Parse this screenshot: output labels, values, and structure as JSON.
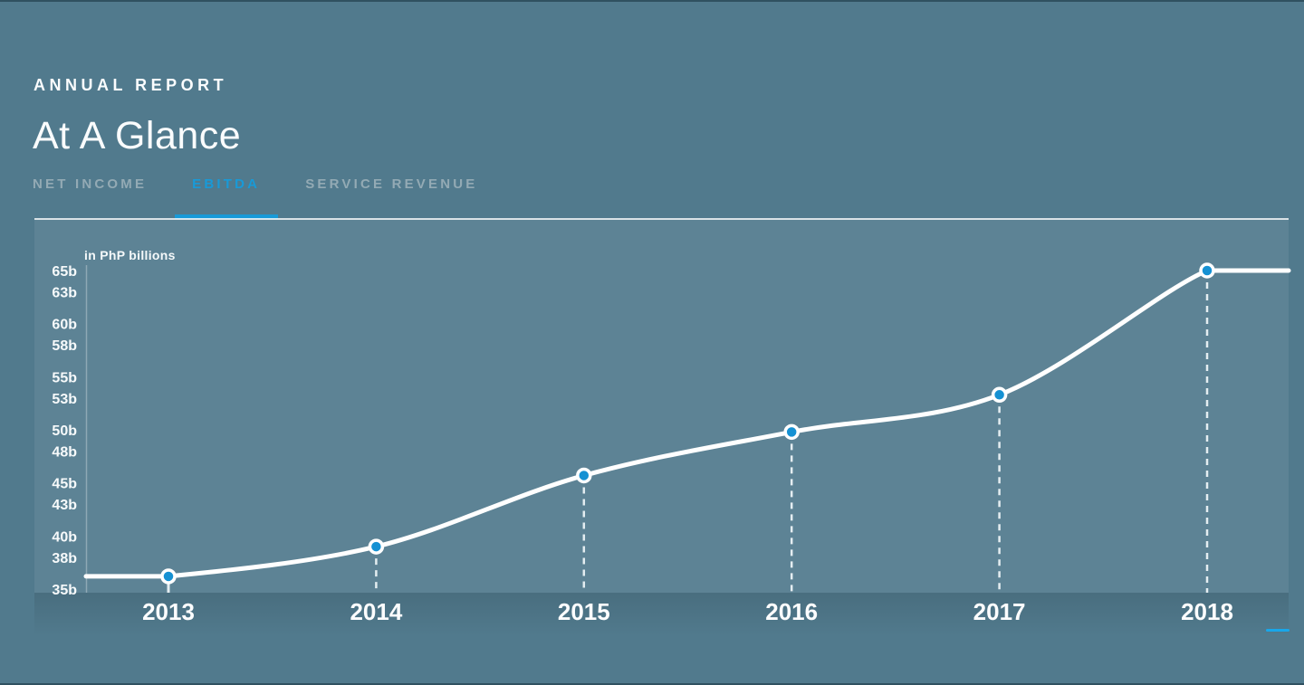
{
  "page": {
    "eyebrow": "ANNUAL REPORT",
    "title": "At A Glance"
  },
  "tabs": [
    {
      "label": "NET INCOME",
      "active": false
    },
    {
      "label": "EBITDA",
      "active": true
    },
    {
      "label": "SERVICE REVENUE",
      "active": false
    }
  ],
  "colors": {
    "background": "#517a8d",
    "accent_blue": "#189ad8",
    "dot_blue": "#1591d3",
    "line_white": "#ffffff",
    "indicator_blue": "#18a7ea",
    "tab_inactive": "#93aab4"
  },
  "chart_data": {
    "type": "line",
    "title": "EBITDA",
    "unit_label": "in PhP billions",
    "categories": [
      "2013",
      "2014",
      "2015",
      "2016",
      "2017",
      "2018"
    ],
    "series": [
      {
        "name": "EBITDA",
        "values": [
          36.2,
          39.0,
          45.7,
          49.8,
          53.3,
          65.0
        ]
      }
    ],
    "y_ticks": [
      {
        "label": "65b",
        "value": 65
      },
      {
        "label": "63b",
        "value": 63
      },
      {
        "label": "60b",
        "value": 60
      },
      {
        "label": "58b",
        "value": 58
      },
      {
        "label": "55b",
        "value": 55
      },
      {
        "label": "53b",
        "value": 53
      },
      {
        "label": "50b",
        "value": 50
      },
      {
        "label": "48b",
        "value": 48
      },
      {
        "label": "45b",
        "value": 45
      },
      {
        "label": "43b",
        "value": 43
      },
      {
        "label": "40b",
        "value": 40
      },
      {
        "label": "38b",
        "value": 38
      },
      {
        "label": "35b",
        "value": 35
      }
    ],
    "ylim": [
      35,
      66
    ],
    "grid": false,
    "legend": "none",
    "marker_style": "circle-with-white-ring",
    "stem_style": "dashed-drop-lines"
  }
}
